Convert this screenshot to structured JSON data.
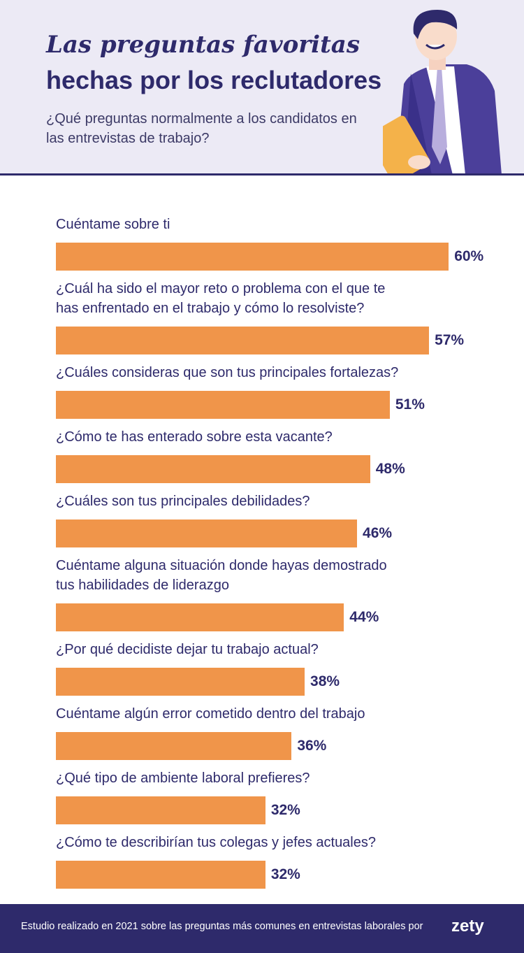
{
  "chart_data": {
    "type": "bar",
    "orientation": "horizontal",
    "title": "Las preguntas favoritas",
    "title_line2": "hechas por los reclutadores",
    "subtitle": "¿Qué preguntas normalmente a los candidatos en las entrevistas de trabajo?",
    "categories": [
      "Cuéntame sobre ti",
      "¿Cuál ha sido el mayor reto o problema con el que te\nhas enfrentado en el trabajo y cómo lo resolviste?",
      "¿Cuáles consideras que son tus principales fortalezas?",
      "¿Cómo te has enterado sobre esta vacante?",
      "¿Cuáles son tus principales debilidades?",
      "Cuéntame alguna situación donde hayas demostrado\ntus habilidades de liderazgo",
      "¿Por qué decidiste dejar tu trabajo actual?",
      "Cuéntame algún error cometido dentro del trabajo",
      "¿Qué tipo de ambiente laboral prefieres?",
      "¿Cómo te describirían tus colegas y jefes actuales?"
    ],
    "values": [
      60,
      57,
      51,
      48,
      46,
      44,
      38,
      36,
      32,
      32
    ],
    "value_labels": [
      "60%",
      "57%",
      "51%",
      "48%",
      "46%",
      "44%",
      "38%",
      "36%",
      "32%",
      "32%"
    ],
    "color": "#f0954a",
    "footer": "Estudio realizado en 2021 sobre las preguntas más comunes en entrevistas laborales por",
    "logo": "zety"
  }
}
